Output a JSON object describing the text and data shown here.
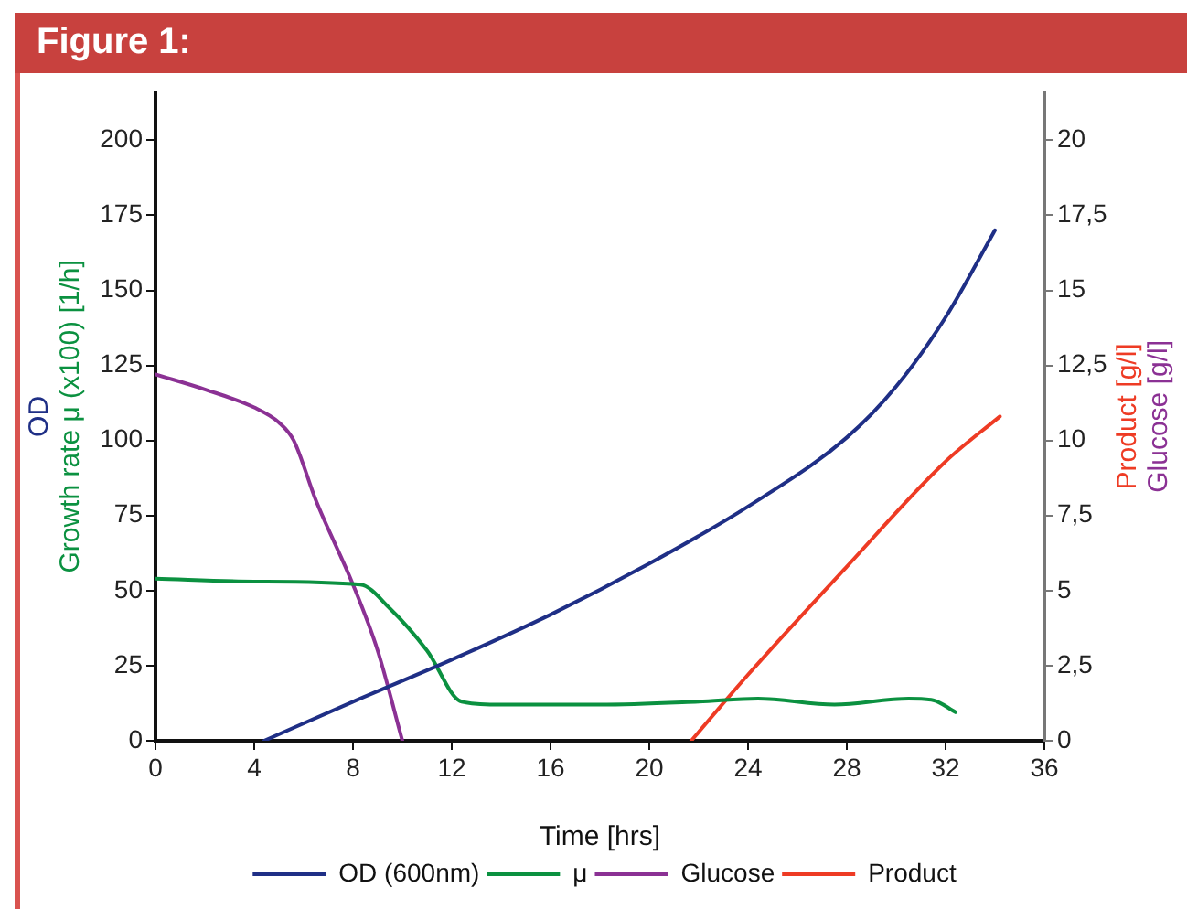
{
  "chart_data": {
    "type": "line",
    "title": "Figure 1:",
    "xlabel": "Time [hrs]",
    "ylabel": "OD\nGrowth rate μ (x100) [1/h]",
    "y2label": "Product [g/l]\nGlucose [g/l]",
    "xlim": [
      0,
      36
    ],
    "xticks": [
      0,
      4,
      8,
      12,
      16,
      20,
      24,
      28,
      32,
      36
    ],
    "ylim": [
      0,
      216
    ],
    "yticks": [
      0,
      25,
      50,
      75,
      100,
      125,
      150,
      175,
      200
    ],
    "y2lim": [
      0,
      21.6
    ],
    "y2ticks": [
      0,
      {
        "value": 2.5,
        "label": "2,5"
      },
      5,
      {
        "value": 7.5,
        "label": "7,5"
      },
      10,
      {
        "value": 12.5,
        "label": "12,5"
      },
      15,
      {
        "value": 17.5,
        "label": "17,5"
      },
      20
    ],
    "grid": false,
    "legend": "bottom",
    "marker": "none",
    "line_style": "solid",
    "series": [
      {
        "name": "OD (600nm)",
        "color": "#1f2f86",
        "x": [
          4.4,
          8,
          12,
          16,
          20,
          24,
          28,
          30,
          32,
          34
        ],
        "values": [
          0,
          13,
          27,
          42,
          59,
          78,
          101,
          118,
          141,
          170
        ]
      },
      {
        "name": "μ",
        "color": "#0b9140",
        "x": [
          0,
          4,
          8.3,
          9.5,
          11,
          12.4,
          14,
          18,
          22,
          24.4,
          27.5,
          30.5,
          31.5,
          32.4
        ],
        "values": [
          54,
          53,
          52,
          44,
          30,
          13,
          12,
          12,
          13,
          14,
          12,
          14,
          13.5,
          9.5
        ]
      },
      {
        "name": "Glucose",
        "color": "#8b3194",
        "axis": "y2",
        "x": [
          0,
          2,
          4,
          5,
          5.6,
          6.5,
          8,
          9,
          10
        ],
        "values": [
          12.2,
          11.7,
          11.1,
          10.6,
          10,
          8,
          5.2,
          3,
          0
        ]
      },
      {
        "name": "Product",
        "color": "#ee3b24",
        "axis": "y2",
        "x": [
          21.7,
          24,
          28,
          32,
          34.2
        ],
        "values": [
          0,
          2.2,
          5.8,
          9.3,
          10.8
        ]
      }
    ]
  }
}
